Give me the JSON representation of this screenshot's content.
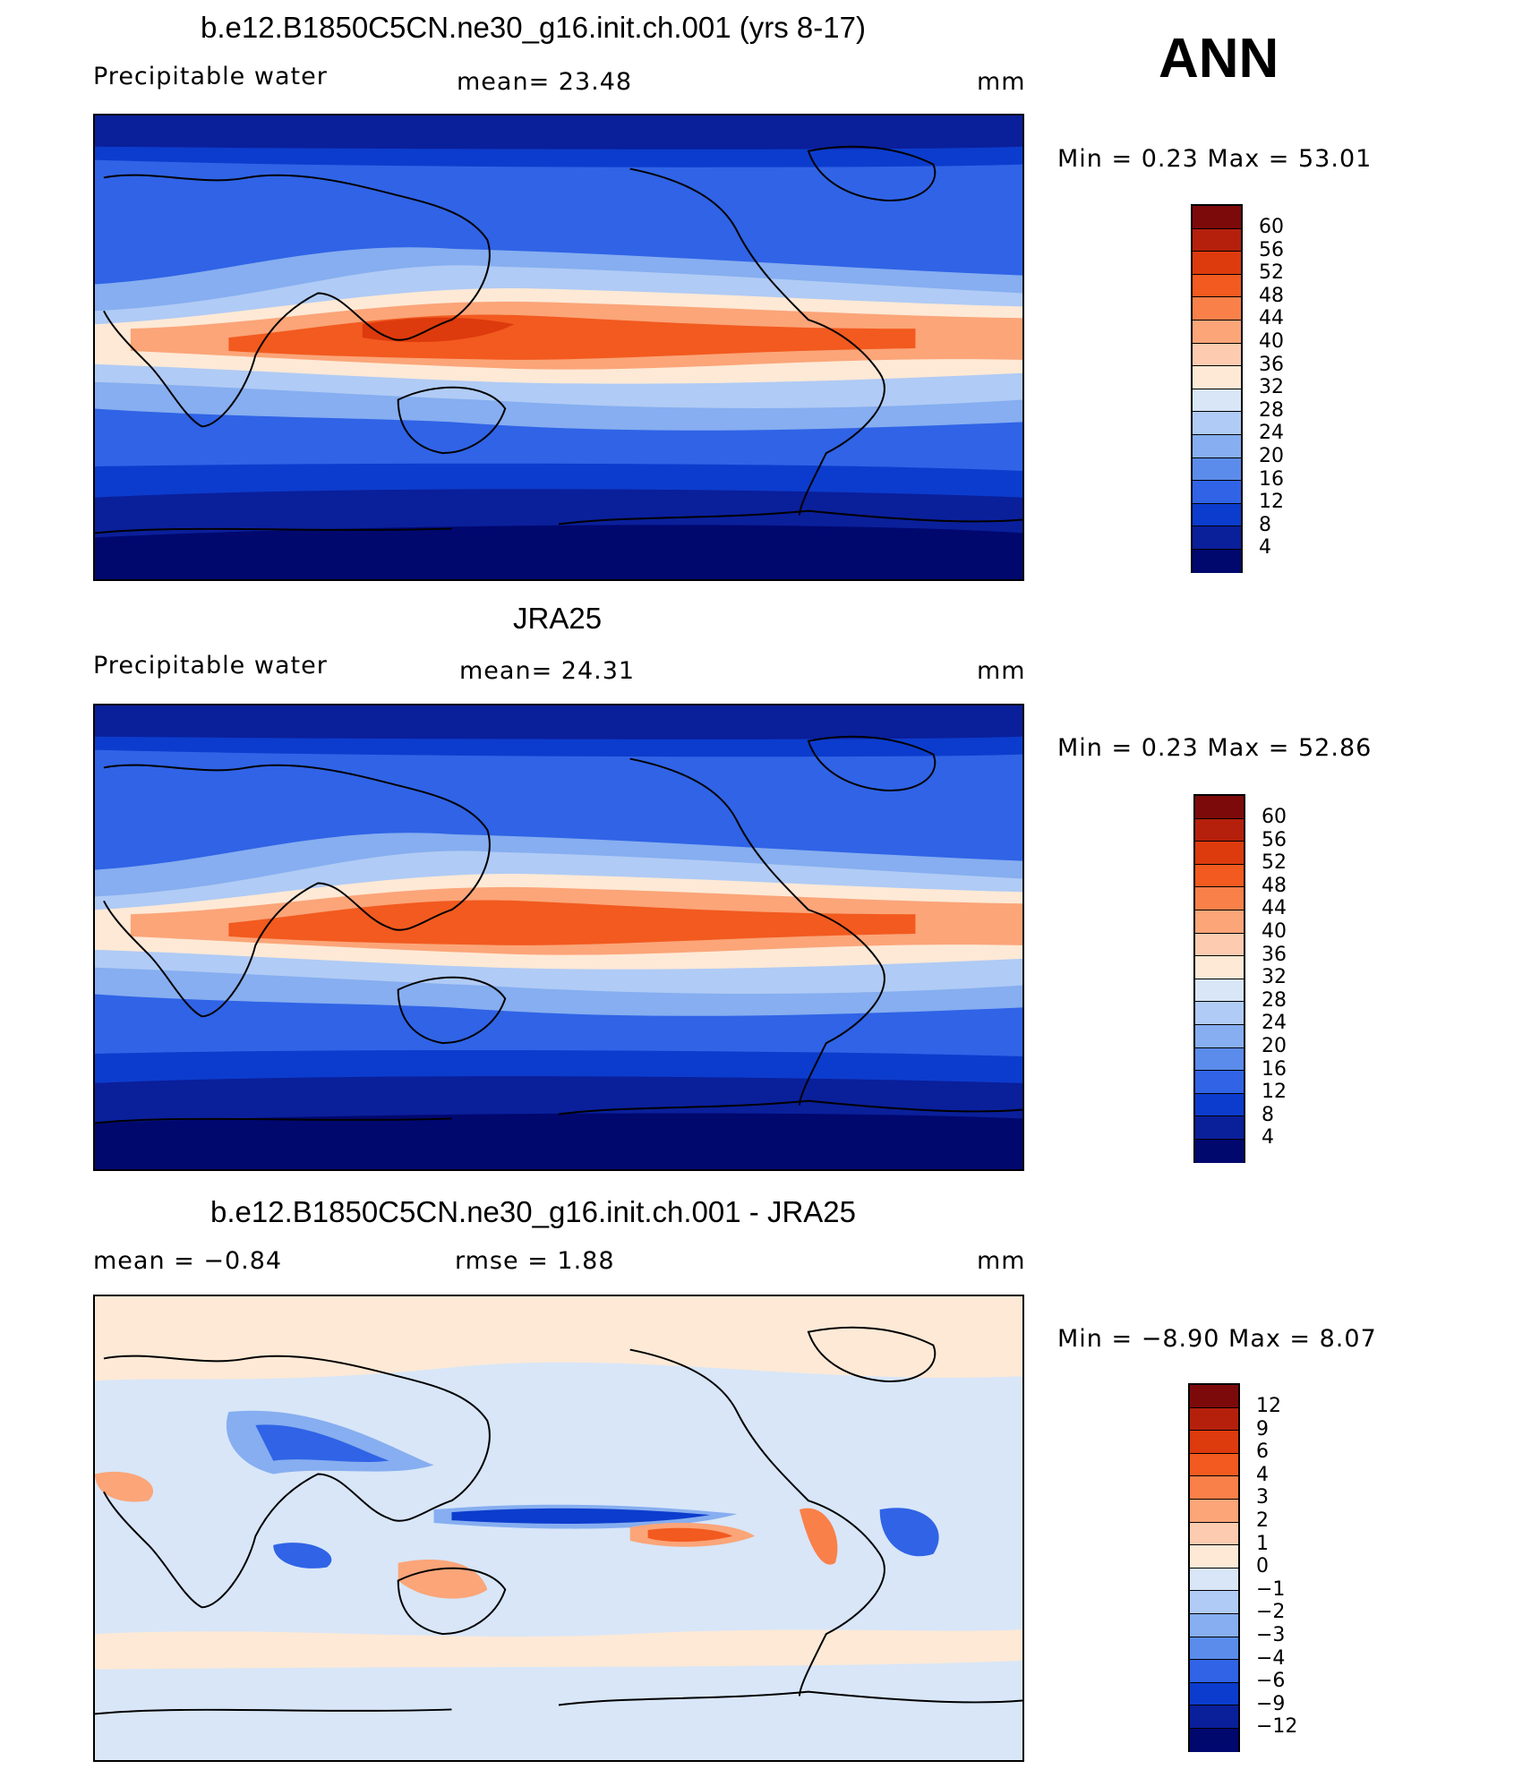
{
  "season": "ANN",
  "panels": [
    {
      "title": "b.e12.B1850C5CN.ne30_g16.init.ch.001 (yrs 8-17)",
      "left_label": "Precipitable  water",
      "mid_label": "mean=   23.48",
      "units": "mm",
      "minmax": "Min =    0.23  Max =   53.01",
      "colorbar_labels": [
        "60",
        "56",
        "52",
        "48",
        "44",
        "40",
        "36",
        "32",
        "28",
        "24",
        "20",
        "16",
        "12",
        "8",
        "4"
      ]
    },
    {
      "title": "JRA25",
      "left_label": "Precipitable  water",
      "mid_label": "mean=   24.31",
      "units": "mm",
      "minmax": "Min =    0.23  Max =   52.86",
      "colorbar_labels": [
        "60",
        "56",
        "52",
        "48",
        "44",
        "40",
        "36",
        "32",
        "28",
        "24",
        "20",
        "16",
        "12",
        "8",
        "4"
      ]
    },
    {
      "title": "b.e12.B1850C5CN.ne30_g16.init.ch.001 - JRA25",
      "left_label": "mean  =   −0.84",
      "mid_label": "rmse  =     1.88",
      "units": "mm",
      "minmax": "Min =   −8.90  Max =     8.07",
      "colorbar_labels": [
        "12",
        "9",
        "6",
        "4",
        "3",
        "2",
        "1",
        "0",
        "−1",
        "−2",
        "−3",
        "−4",
        "−6",
        "−9",
        "−12"
      ]
    }
  ],
  "colors": {
    "seq": [
      "#7d0a0a",
      "#b5200c",
      "#dd3a0d",
      "#f25a1f",
      "#f98049",
      "#fba579",
      "#fdcbb0",
      "#fde9d6",
      "#d8e6f8",
      "#b0cbf5",
      "#86aef0",
      "#5b8cec",
      "#3063e6",
      "#0c3ccd",
      "#0a1f9a",
      "#00086e"
    ]
  }
}
